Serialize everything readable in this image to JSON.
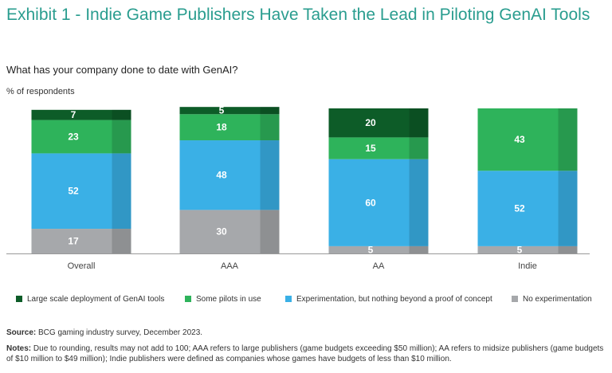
{
  "header": {
    "title": "Exhibit 1 - Indie Game Publishers Have Taken the Lead in Piloting GenAI Tools",
    "subtitle": "What has your company done to date with GenAI?",
    "unit_label": "% of respondents"
  },
  "colors": {
    "large_scale": "#0d5c28",
    "pilots": "#2eb35b",
    "experimentation": "#3ab0e6",
    "no_experimentation": "#a6a8ab",
    "title": "#2a9d8f"
  },
  "chart_data": {
    "type": "bar",
    "stacked": true,
    "categories": [
      "Overall",
      "AAA",
      "AA",
      "Indie"
    ],
    "series": [
      {
        "name": "No experimentation",
        "color_key": "no_experimentation",
        "values": [
          17,
          30,
          5,
          5
        ]
      },
      {
        "name": "Experimentation, but nothing beyond a proof of concept",
        "color_key": "experimentation",
        "values": [
          52,
          48,
          60,
          52
        ]
      },
      {
        "name": "Some pilots in use",
        "color_key": "pilots",
        "values": [
          23,
          18,
          15,
          43
        ]
      },
      {
        "name": "Large scale deployment of GenAI tools",
        "color_key": "large_scale",
        "values": [
          7,
          5,
          20,
          0
        ]
      }
    ],
    "ylim": [
      0,
      100
    ],
    "legend_position": "bottom"
  },
  "legend": [
    {
      "label": "Large scale deployment of GenAI tools",
      "color_key": "large_scale"
    },
    {
      "label": "Some pilots in use",
      "color_key": "pilots"
    },
    {
      "label": "Experimentation, but nothing beyond a proof of concept",
      "color_key": "experimentation"
    },
    {
      "label": "No experimentation",
      "color_key": "no_experimentation"
    }
  ],
  "footer": {
    "source_label": "Source:",
    "source_text": "BCG gaming industry survey, December 2023.",
    "notes_label": "Notes:",
    "notes_text": "Due to rounding, results may not add to 100; AAA refers to large publishers (game budgets exceeding $50 million); AA refers to midsize publishers (game budgets of $10 million to $49 million); Indie publishers were defined as companies whose games have budgets of less than $10 million."
  }
}
